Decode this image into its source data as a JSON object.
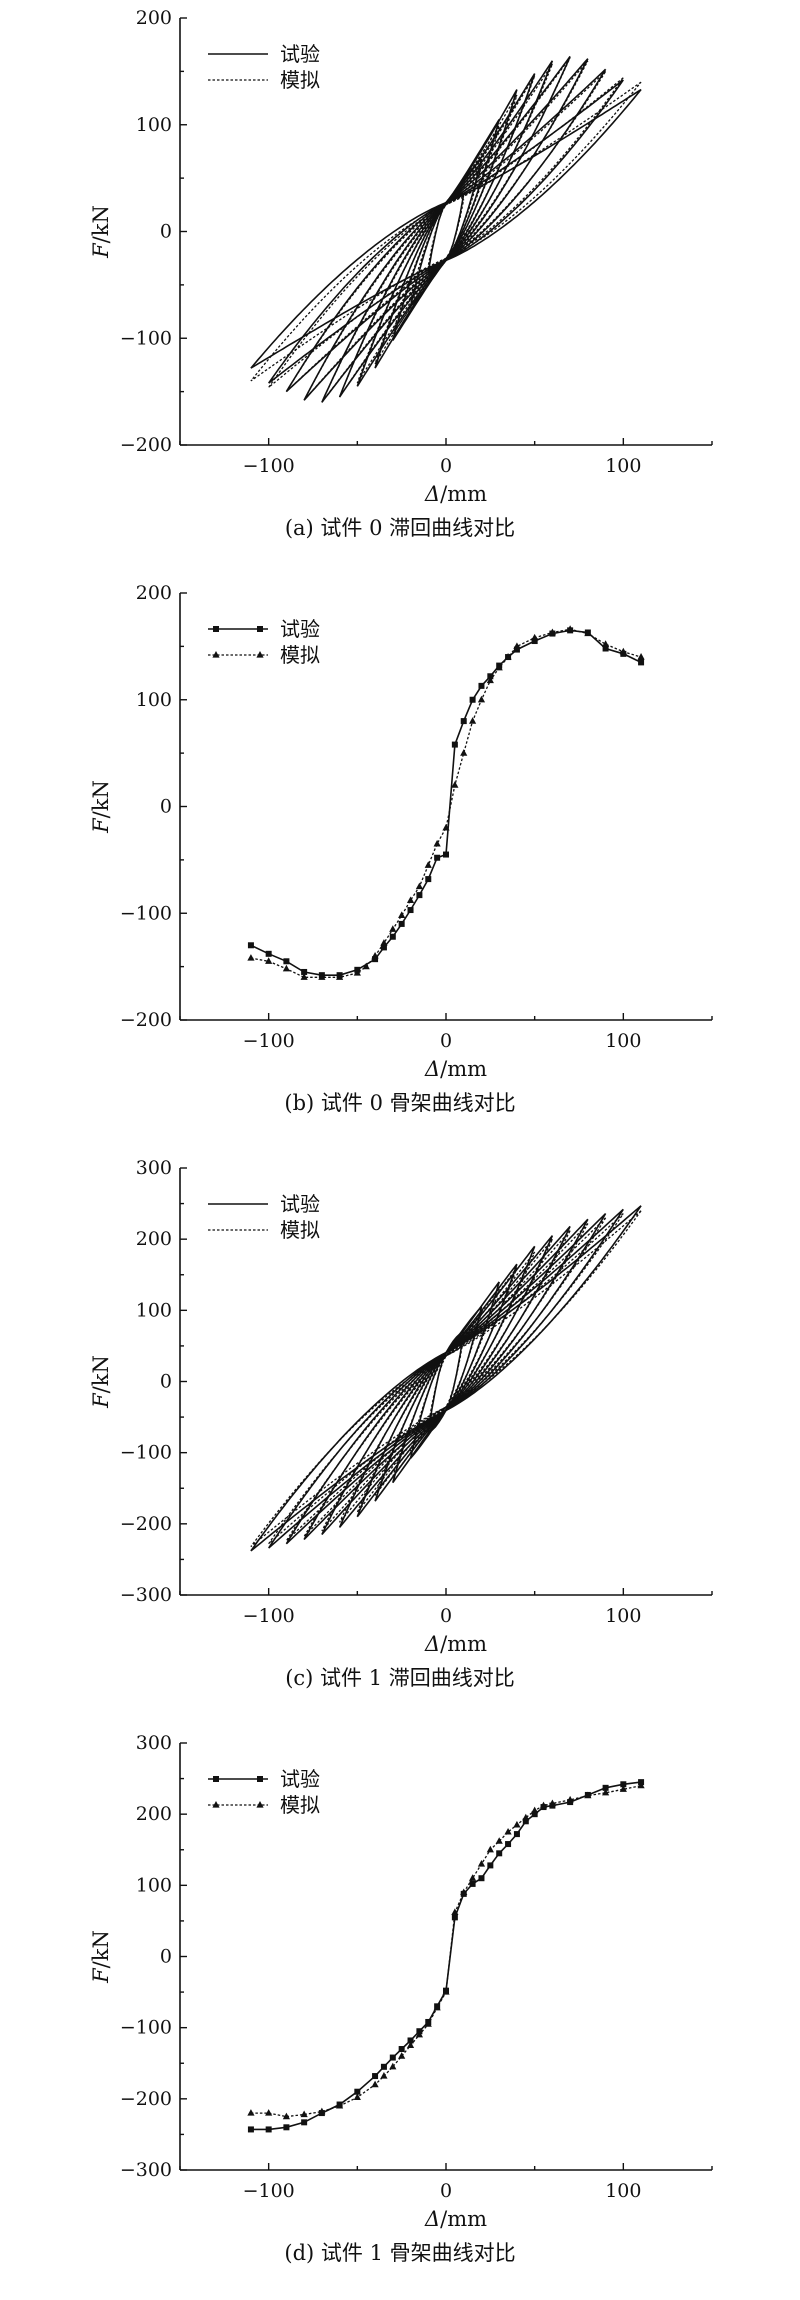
{
  "chart_data": [
    {
      "type": "line",
      "caption": "(a) 试件 0 滞回曲线对比",
      "xlabel_sym": "Δ",
      "xlabel_unit": "/mm",
      "ylabel_sym": "F",
      "ylabel_unit": "/kN",
      "xlim": [
        -150,
        150
      ],
      "ylim": [
        -200,
        200
      ],
      "xticks": [
        -100,
        0,
        100
      ],
      "yticks": [
        -200,
        -100,
        0,
        100,
        200
      ],
      "xtick_labels": [
        "−100",
        "0",
        "100"
      ],
      "ytick_labels": [
        "−200",
        "−100",
        "0",
        "100",
        "200"
      ],
      "legend_position": "top-left",
      "legend_markers": false,
      "curve_kind": "hysteresis",
      "series": [
        {
          "name": "试验",
          "style": "solid",
          "marker": "none",
          "cycles": [
            {
              "amp": 10,
              "fmax": 35,
              "fmin": -38
            },
            {
              "amp": 20,
              "fmax": 68,
              "fmin": -70
            },
            {
              "amp": 30,
              "fmax": 105,
              "fmin": -102
            },
            {
              "amp": 40,
              "fmax": 133,
              "fmin": -128
            },
            {
              "amp": 50,
              "fmax": 148,
              "fmin": -145
            },
            {
              "amp": 60,
              "fmax": 160,
              "fmin": -155
            },
            {
              "amp": 70,
              "fmax": 164,
              "fmin": -160
            },
            {
              "amp": 80,
              "fmax": 162,
              "fmin": -158
            },
            {
              "amp": 90,
              "fmax": 152,
              "fmin": -150
            },
            {
              "amp": 100,
              "fmax": 142,
              "fmin": -142
            },
            {
              "amp": 110,
              "fmax": 133,
              "fmin": -128
            }
          ]
        },
        {
          "name": "模拟",
          "style": "dotted",
          "marker": "none",
          "cycles": [
            {
              "amp": 10,
              "fmax": 30,
              "fmin": -32
            },
            {
              "amp": 20,
              "fmax": 62,
              "fmin": -62
            },
            {
              "amp": 30,
              "fmax": 98,
              "fmin": -96
            },
            {
              "amp": 40,
              "fmax": 128,
              "fmin": -124
            },
            {
              "amp": 50,
              "fmax": 146,
              "fmin": -142
            },
            {
              "amp": 60,
              "fmax": 157,
              "fmin": -155
            },
            {
              "amp": 70,
              "fmax": 163,
              "fmin": -160
            },
            {
              "amp": 80,
              "fmax": 160,
              "fmin": -158
            },
            {
              "amp": 90,
              "fmax": 150,
              "fmin": -150
            },
            {
              "amp": 100,
              "fmax": 144,
              "fmin": -146
            },
            {
              "amp": 110,
              "fmax": 140,
              "fmin": -140
            }
          ]
        }
      ]
    },
    {
      "type": "line",
      "caption": "(b) 试件 0 骨架曲线对比",
      "xlabel_sym": "Δ",
      "xlabel_unit": "/mm",
      "ylabel_sym": "F",
      "ylabel_unit": "/kN",
      "xlim": [
        -150,
        150
      ],
      "ylim": [
        -200,
        200
      ],
      "xticks": [
        -100,
        0,
        100
      ],
      "yticks": [
        -200,
        -100,
        0,
        100,
        200
      ],
      "xtick_labels": [
        "−100",
        "0",
        "100"
      ],
      "ytick_labels": [
        "−200",
        "−100",
        "0",
        "100",
        "200"
      ],
      "legend_position": "top-left",
      "legend_markers": true,
      "curve_kind": "skeleton",
      "series": [
        {
          "name": "试验",
          "style": "solid",
          "marker": "square",
          "points": [
            [
              -110,
              -130
            ],
            [
              -100,
              -138
            ],
            [
              -90,
              -145
            ],
            [
              -80,
              -155
            ],
            [
              -70,
              -158
            ],
            [
              -60,
              -158
            ],
            [
              -50,
              -153
            ],
            [
              -40,
              -143
            ],
            [
              -35,
              -132
            ],
            [
              -30,
              -122
            ],
            [
              -25,
              -110
            ],
            [
              -20,
              -97
            ],
            [
              -15,
              -83
            ],
            [
              -10,
              -68
            ],
            [
              -5,
              -48
            ],
            [
              0,
              -45
            ],
            [
              5,
              58
            ],
            [
              10,
              80
            ],
            [
              15,
              100
            ],
            [
              20,
              113
            ],
            [
              25,
              122
            ],
            [
              30,
              132
            ],
            [
              35,
              140
            ],
            [
              40,
              147
            ],
            [
              50,
              155
            ],
            [
              60,
              162
            ],
            [
              70,
              165
            ],
            [
              80,
              163
            ],
            [
              90,
              148
            ],
            [
              100,
              143
            ],
            [
              110,
              135
            ]
          ]
        },
        {
          "name": "模拟",
          "style": "dotted",
          "marker": "triangle",
          "points": [
            [
              -110,
              -142
            ],
            [
              -100,
              -145
            ],
            [
              -90,
              -152
            ],
            [
              -80,
              -160
            ],
            [
              -70,
              -160
            ],
            [
              -60,
              -160
            ],
            [
              -50,
              -156
            ],
            [
              -45,
              -150
            ],
            [
              -40,
              -140
            ],
            [
              -35,
              -128
            ],
            [
              -30,
              -115
            ],
            [
              -25,
              -102
            ],
            [
              -20,
              -88
            ],
            [
              -15,
              -75
            ],
            [
              -10,
              -55
            ],
            [
              -5,
              -35
            ],
            [
              0,
              -20
            ],
            [
              5,
              20
            ],
            [
              10,
              50
            ],
            [
              15,
              80
            ],
            [
              20,
              100
            ],
            [
              25,
              118
            ],
            [
              30,
              130
            ],
            [
              35,
              140
            ],
            [
              40,
              150
            ],
            [
              50,
              158
            ],
            [
              60,
              163
            ],
            [
              70,
              166
            ],
            [
              80,
              162
            ],
            [
              90,
              152
            ],
            [
              100,
              145
            ],
            [
              110,
              140
            ]
          ]
        }
      ]
    },
    {
      "type": "line",
      "caption": "(c) 试件 1 滞回曲线对比",
      "xlabel_sym": "Δ",
      "xlabel_unit": "/mm",
      "ylabel_sym": "F",
      "ylabel_unit": "/kN",
      "xlim": [
        -150,
        150
      ],
      "ylim": [
        -300,
        300
      ],
      "xticks": [
        -100,
        0,
        100
      ],
      "yticks": [
        -300,
        -200,
        -100,
        0,
        100,
        200,
        300
      ],
      "xtick_labels": [
        "−100",
        "0",
        "100"
      ],
      "ytick_labels": [
        "−300",
        "−200",
        "−100",
        "0",
        "100",
        "200",
        "300"
      ],
      "legend_position": "top-left",
      "legend_markers": false,
      "curve_kind": "hysteresis",
      "series": [
        {
          "name": "试验",
          "style": "solid",
          "marker": "none",
          "cycles": [
            {
              "amp": 10,
              "fmax": 70,
              "fmin": -72
            },
            {
              "amp": 20,
              "fmax": 105,
              "fmin": -108
            },
            {
              "amp": 30,
              "fmax": 140,
              "fmin": -142
            },
            {
              "amp": 40,
              "fmax": 165,
              "fmin": -168
            },
            {
              "amp": 50,
              "fmax": 190,
              "fmin": -190
            },
            {
              "amp": 60,
              "fmax": 205,
              "fmin": -205
            },
            {
              "amp": 70,
              "fmax": 218,
              "fmin": -215
            },
            {
              "amp": 80,
              "fmax": 228,
              "fmin": -222
            },
            {
              "amp": 90,
              "fmax": 236,
              "fmin": -228
            },
            {
              "amp": 100,
              "fmax": 242,
              "fmin": -234
            },
            {
              "amp": 110,
              "fmax": 247,
              "fmin": -238
            }
          ]
        },
        {
          "name": "模拟",
          "style": "dotted",
          "marker": "none",
          "cycles": [
            {
              "amp": 10,
              "fmax": 62,
              "fmin": -62
            },
            {
              "amp": 20,
              "fmax": 98,
              "fmin": -98
            },
            {
              "amp": 30,
              "fmax": 130,
              "fmin": -134
            },
            {
              "amp": 40,
              "fmax": 160,
              "fmin": -160
            },
            {
              "amp": 50,
              "fmax": 182,
              "fmin": -184
            },
            {
              "amp": 60,
              "fmax": 200,
              "fmin": -198
            },
            {
              "amp": 70,
              "fmax": 212,
              "fmin": -210
            },
            {
              "amp": 80,
              "fmax": 222,
              "fmin": -218
            },
            {
              "amp": 90,
              "fmax": 230,
              "fmin": -224
            },
            {
              "amp": 100,
              "fmax": 236,
              "fmin": -228
            },
            {
              "amp": 110,
              "fmax": 240,
              "fmin": -232
            }
          ]
        }
      ]
    },
    {
      "type": "line",
      "caption": "(d) 试件 1 骨架曲线对比",
      "xlabel_sym": "Δ",
      "xlabel_unit": "/mm",
      "ylabel_sym": "F",
      "ylabel_unit": "/kN",
      "xlim": [
        -150,
        150
      ],
      "ylim": [
        -300,
        300
      ],
      "xticks": [
        -100,
        0,
        100
      ],
      "yticks": [
        -300,
        -200,
        -100,
        0,
        100,
        200,
        300
      ],
      "xtick_labels": [
        "−100",
        "0",
        "100"
      ],
      "ytick_labels": [
        "−300",
        "−200",
        "−100",
        "0",
        "100",
        "200",
        "300"
      ],
      "legend_position": "top-left",
      "legend_markers": true,
      "curve_kind": "skeleton",
      "series": [
        {
          "name": "试验",
          "style": "solid",
          "marker": "square",
          "points": [
            [
              -110,
              -243
            ],
            [
              -100,
              -243
            ],
            [
              -90,
              -240
            ],
            [
              -80,
              -233
            ],
            [
              -70,
              -220
            ],
            [
              -60,
              -208
            ],
            [
              -50,
              -190
            ],
            [
              -40,
              -168
            ],
            [
              -35,
              -155
            ],
            [
              -30,
              -142
            ],
            [
              -25,
              -130
            ],
            [
              -20,
              -118
            ],
            [
              -15,
              -105
            ],
            [
              -10,
              -92
            ],
            [
              -5,
              -70
            ],
            [
              0,
              -48
            ],
            [
              5,
              55
            ],
            [
              10,
              88
            ],
            [
              15,
              102
            ],
            [
              20,
              110
            ],
            [
              25,
              128
            ],
            [
              30,
              145
            ],
            [
              35,
              158
            ],
            [
              40,
              172
            ],
            [
              45,
              190
            ],
            [
              50,
              200
            ],
            [
              55,
              210
            ],
            [
              60,
              212
            ],
            [
              70,
              217
            ],
            [
              80,
              227
            ],
            [
              90,
              237
            ],
            [
              100,
              242
            ],
            [
              110,
              245
            ]
          ]
        },
        {
          "name": "模拟",
          "style": "dotted",
          "marker": "triangle",
          "points": [
            [
              -110,
              -220
            ],
            [
              -100,
              -220
            ],
            [
              -90,
              -225
            ],
            [
              -80,
              -222
            ],
            [
              -70,
              -218
            ],
            [
              -60,
              -210
            ],
            [
              -50,
              -198
            ],
            [
              -40,
              -180
            ],
            [
              -35,
              -168
            ],
            [
              -30,
              -155
            ],
            [
              -25,
              -140
            ],
            [
              -20,
              -125
            ],
            [
              -15,
              -110
            ],
            [
              -10,
              -95
            ],
            [
              -5,
              -72
            ],
            [
              0,
              -50
            ],
            [
              5,
              62
            ],
            [
              10,
              90
            ],
            [
              15,
              110
            ],
            [
              20,
              130
            ],
            [
              25,
              150
            ],
            [
              30,
              162
            ],
            [
              35,
              175
            ],
            [
              40,
              185
            ],
            [
              45,
              195
            ],
            [
              50,
              205
            ],
            [
              55,
              212
            ],
            [
              60,
              215
            ],
            [
              70,
              220
            ],
            [
              80,
              226
            ],
            [
              90,
              230
            ],
            [
              100,
              235
            ],
            [
              110,
              240
            ]
          ]
        }
      ]
    }
  ]
}
